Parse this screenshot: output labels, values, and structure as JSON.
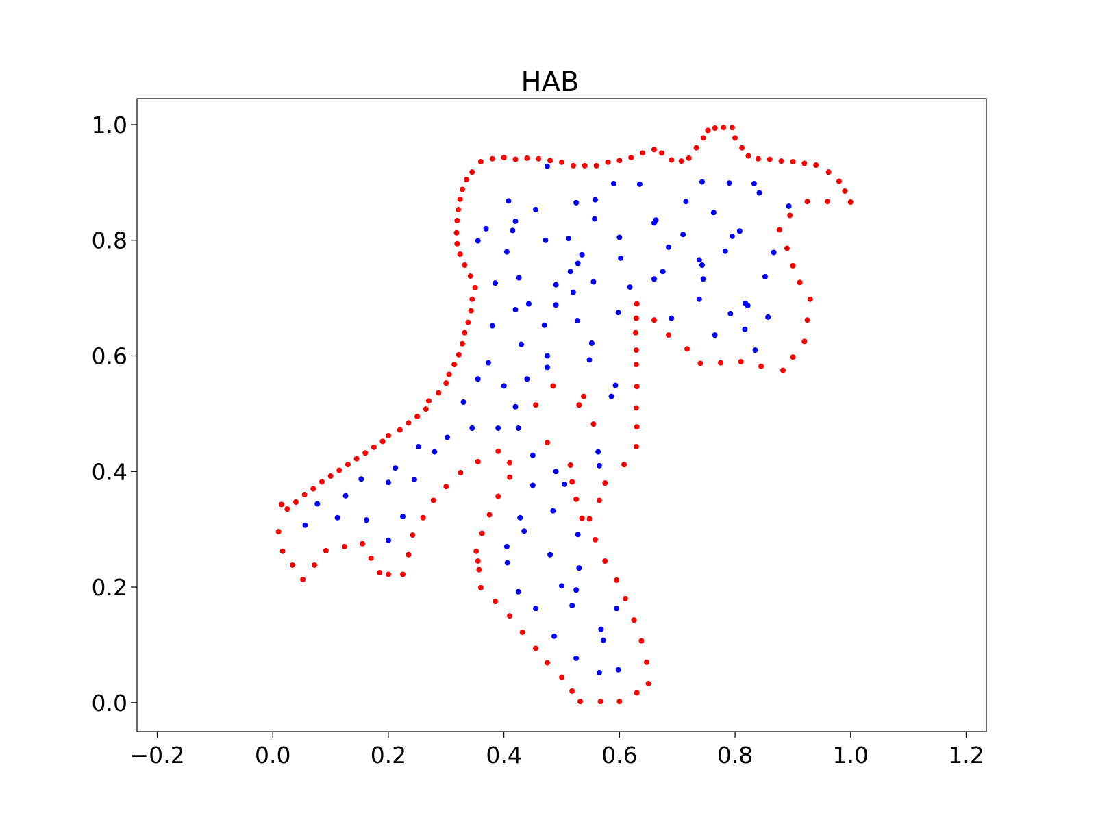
{
  "chart_data": {
    "type": "scatter",
    "title": "HAB",
    "xlabel": "",
    "ylabel": "",
    "xlim": [
      -0.235,
      1.235
    ],
    "ylim": [
      -0.05,
      1.045
    ],
    "xticks": [
      -0.2,
      0.0,
      0.2,
      0.4,
      0.6,
      0.8,
      1.0,
      1.2
    ],
    "xtick_labels": [
      "−0.2",
      "0.0",
      "0.2",
      "0.4",
      "0.6",
      "0.8",
      "1.0",
      "1.2"
    ],
    "yticks": [
      0.0,
      0.2,
      0.4,
      0.6,
      0.8,
      1.0
    ],
    "ytick_labels": [
      "0.0",
      "0.2",
      "0.4",
      "0.6",
      "0.8",
      "1.0"
    ],
    "grid": false,
    "series": [
      {
        "color": "#ff0000",
        "points": [
          [
            0.01,
            0.296
          ],
          [
            0.017,
            0.262
          ],
          [
            0.034,
            0.238
          ],
          [
            0.052,
            0.213
          ],
          [
            0.072,
            0.238
          ],
          [
            0.092,
            0.263
          ],
          [
            0.124,
            0.27
          ],
          [
            0.155,
            0.275
          ],
          [
            0.17,
            0.25
          ],
          [
            0.185,
            0.225
          ],
          [
            0.2,
            0.222
          ],
          [
            0.225,
            0.222
          ],
          [
            0.235,
            0.256
          ],
          [
            0.242,
            0.29
          ],
          [
            0.26,
            0.32
          ],
          [
            0.278,
            0.35
          ],
          [
            0.3,
            0.374
          ],
          [
            0.325,
            0.398
          ],
          [
            0.355,
            0.417
          ],
          [
            0.39,
            0.435
          ],
          [
            0.41,
            0.415
          ],
          [
            0.41,
            0.39
          ],
          [
            0.39,
            0.357
          ],
          [
            0.375,
            0.325
          ],
          [
            0.362,
            0.293
          ],
          [
            0.352,
            0.262
          ],
          [
            0.355,
            0.245
          ],
          [
            0.357,
            0.23
          ],
          [
            0.36,
            0.199
          ],
          [
            0.385,
            0.175
          ],
          [
            0.41,
            0.15
          ],
          [
            0.432,
            0.122
          ],
          [
            0.455,
            0.094
          ],
          [
            0.475,
            0.069
          ],
          [
            0.5,
            0.044
          ],
          [
            0.518,
            0.02
          ],
          [
            0.532,
            0.002
          ],
          [
            0.567,
            0.002
          ],
          [
            0.6,
            0.002
          ],
          [
            0.63,
            0.017
          ],
          [
            0.65,
            0.033
          ],
          [
            0.647,
            0.07
          ],
          [
            0.638,
            0.107
          ],
          [
            0.625,
            0.143
          ],
          [
            0.61,
            0.18
          ],
          [
            0.595,
            0.212
          ],
          [
            0.575,
            0.245
          ],
          [
            0.558,
            0.282
          ],
          [
            0.548,
            0.318
          ],
          [
            0.535,
            0.319
          ],
          [
            0.525,
            0.352
          ],
          [
            0.518,
            0.382
          ],
          [
            0.515,
            0.411
          ],
          [
            0.475,
            0.45
          ],
          [
            0.455,
            0.515
          ],
          [
            0.53,
            0.515
          ],
          [
            0.555,
            0.482
          ],
          [
            0.565,
            0.35
          ],
          [
            0.575,
            0.38
          ],
          [
            0.608,
            0.412
          ],
          [
            0.629,
            0.443
          ],
          [
            0.63,
            0.477
          ],
          [
            0.629,
            0.51
          ],
          [
            0.63,
            0.547
          ],
          [
            0.629,
            0.585
          ],
          [
            0.629,
            0.61
          ],
          [
            0.628,
            0.64
          ],
          [
            0.629,
            0.665
          ],
          [
            0.63,
            0.69
          ],
          [
            0.66,
            0.662
          ],
          [
            0.685,
            0.636
          ],
          [
            0.717,
            0.612
          ],
          [
            0.74,
            0.587
          ],
          [
            0.775,
            0.588
          ],
          [
            0.81,
            0.59
          ],
          [
            0.845,
            0.582
          ],
          [
            0.883,
            0.575
          ],
          [
            0.9,
            0.598
          ],
          [
            0.92,
            0.625
          ],
          [
            0.925,
            0.662
          ],
          [
            0.93,
            0.698
          ],
          [
            0.912,
            0.727
          ],
          [
            0.9,
            0.756
          ],
          [
            0.89,
            0.786
          ],
          [
            0.877,
            0.818
          ],
          [
            0.895,
            0.843
          ],
          [
            0.925,
            0.867
          ],
          [
            0.96,
            0.867
          ],
          [
            1.0,
            0.866
          ],
          [
            0.99,
            0.885
          ],
          [
            0.98,
            0.902
          ],
          [
            0.962,
            0.918
          ],
          [
            0.94,
            0.93
          ],
          [
            0.92,
            0.933
          ],
          [
            0.9,
            0.936
          ],
          [
            0.88,
            0.937
          ],
          [
            0.86,
            0.94
          ],
          [
            0.84,
            0.941
          ],
          [
            0.823,
            0.946
          ],
          [
            0.812,
            0.96
          ],
          [
            0.8,
            0.977
          ],
          [
            0.795,
            0.995
          ],
          [
            0.78,
            0.995
          ],
          [
            0.765,
            0.994
          ],
          [
            0.753,
            0.99
          ],
          [
            0.745,
            0.977
          ],
          [
            0.733,
            0.96
          ],
          [
            0.72,
            0.942
          ],
          [
            0.707,
            0.937
          ],
          [
            0.69,
            0.939
          ],
          [
            0.673,
            0.951
          ],
          [
            0.66,
            0.957
          ],
          [
            0.64,
            0.951
          ],
          [
            0.62,
            0.943
          ],
          [
            0.6,
            0.938
          ],
          [
            0.58,
            0.935
          ],
          [
            0.56,
            0.929
          ],
          [
            0.54,
            0.929
          ],
          [
            0.52,
            0.929
          ],
          [
            0.5,
            0.935
          ],
          [
            0.48,
            0.938
          ],
          [
            0.46,
            0.941
          ],
          [
            0.44,
            0.942
          ],
          [
            0.42,
            0.94
          ],
          [
            0.4,
            0.943
          ],
          [
            0.38,
            0.941
          ],
          [
            0.36,
            0.936
          ],
          [
            0.345,
            0.918
          ],
          [
            0.335,
            0.905
          ],
          [
            0.328,
            0.888
          ],
          [
            0.324,
            0.871
          ],
          [
            0.321,
            0.853
          ],
          [
            0.319,
            0.834
          ],
          [
            0.318,
            0.813
          ],
          [
            0.319,
            0.794
          ],
          [
            0.324,
            0.776
          ],
          [
            0.332,
            0.757
          ],
          [
            0.342,
            0.738
          ],
          [
            0.35,
            0.718
          ],
          [
            0.345,
            0.698
          ],
          [
            0.343,
            0.678
          ],
          [
            0.338,
            0.658
          ],
          [
            0.332,
            0.64
          ],
          [
            0.328,
            0.621
          ],
          [
            0.322,
            0.602
          ],
          [
            0.314,
            0.585
          ],
          [
            0.305,
            0.568
          ],
          [
            0.3,
            0.553
          ],
          [
            0.287,
            0.536
          ],
          [
            0.27,
            0.522
          ],
          [
            0.265,
            0.508
          ],
          [
            0.25,
            0.495
          ],
          [
            0.235,
            0.484
          ],
          [
            0.22,
            0.472
          ],
          [
            0.2,
            0.462
          ],
          [
            0.19,
            0.452
          ],
          [
            0.175,
            0.442
          ],
          [
            0.16,
            0.432
          ],
          [
            0.145,
            0.422
          ],
          [
            0.13,
            0.412
          ],
          [
            0.115,
            0.402
          ],
          [
            0.1,
            0.392
          ],
          [
            0.085,
            0.382
          ],
          [
            0.07,
            0.37
          ],
          [
            0.055,
            0.36
          ],
          [
            0.04,
            0.347
          ],
          [
            0.025,
            0.335
          ],
          [
            0.015,
            0.343
          ],
          [
            0.485,
            0.548
          ],
          [
            0.538,
            0.53
          ]
        ]
      },
      {
        "color": "#0000ff",
        "points": [
          [
            0.056,
            0.307
          ],
          [
            0.077,
            0.344
          ],
          [
            0.112,
            0.32
          ],
          [
            0.126,
            0.358
          ],
          [
            0.153,
            0.387
          ],
          [
            0.162,
            0.316
          ],
          [
            0.2,
            0.381
          ],
          [
            0.212,
            0.406
          ],
          [
            0.225,
            0.322
          ],
          [
            0.2,
            0.281
          ],
          [
            0.245,
            0.386
          ],
          [
            0.252,
            0.443
          ],
          [
            0.28,
            0.434
          ],
          [
            0.302,
            0.459
          ],
          [
            0.33,
            0.52
          ],
          [
            0.345,
            0.475
          ],
          [
            0.355,
            0.56
          ],
          [
            0.373,
            0.588
          ],
          [
            0.38,
            0.652
          ],
          [
            0.385,
            0.726
          ],
          [
            0.355,
            0.799
          ],
          [
            0.369,
            0.82
          ],
          [
            0.4,
            0.548
          ],
          [
            0.39,
            0.475
          ],
          [
            0.42,
            0.512
          ],
          [
            0.425,
            0.475
          ],
          [
            0.42,
            0.68
          ],
          [
            0.426,
            0.735
          ],
          [
            0.43,
            0.62
          ],
          [
            0.44,
            0.56
          ],
          [
            0.443,
            0.69
          ],
          [
            0.405,
            0.78
          ],
          [
            0.408,
            0.868
          ],
          [
            0.415,
            0.817
          ],
          [
            0.42,
            0.833
          ],
          [
            0.455,
            0.853
          ],
          [
            0.47,
            0.653
          ],
          [
            0.472,
            0.8
          ],
          [
            0.475,
            0.928
          ],
          [
            0.475,
            0.6
          ],
          [
            0.475,
            0.58
          ],
          [
            0.49,
            0.688
          ],
          [
            0.49,
            0.723
          ],
          [
            0.512,
            0.803
          ],
          [
            0.525,
            0.865
          ],
          [
            0.528,
            0.76
          ],
          [
            0.535,
            0.775
          ],
          [
            0.515,
            0.746
          ],
          [
            0.52,
            0.71
          ],
          [
            0.527,
            0.661
          ],
          [
            0.548,
            0.593
          ],
          [
            0.552,
            0.622
          ],
          [
            0.555,
            0.728
          ],
          [
            0.557,
            0.837
          ],
          [
            0.558,
            0.87
          ],
          [
            0.59,
            0.898
          ],
          [
            0.6,
            0.805
          ],
          [
            0.602,
            0.769
          ],
          [
            0.598,
            0.675
          ],
          [
            0.618,
            0.719
          ],
          [
            0.635,
            0.897
          ],
          [
            0.66,
            0.83
          ],
          [
            0.66,
            0.733
          ],
          [
            0.663,
            0.835
          ],
          [
            0.675,
            0.746
          ],
          [
            0.685,
            0.788
          ],
          [
            0.69,
            0.665
          ],
          [
            0.71,
            0.81
          ],
          [
            0.715,
            0.867
          ],
          [
            0.743,
            0.901
          ],
          [
            0.763,
            0.848
          ],
          [
            0.738,
            0.766
          ],
          [
            0.743,
            0.757
          ],
          [
            0.745,
            0.733
          ],
          [
            0.738,
            0.698
          ],
          [
            0.765,
            0.636
          ],
          [
            0.783,
            0.781
          ],
          [
            0.79,
            0.899
          ],
          [
            0.795,
            0.807
          ],
          [
            0.792,
            0.673
          ],
          [
            0.808,
            0.816
          ],
          [
            0.818,
            0.691
          ],
          [
            0.822,
            0.687
          ],
          [
            0.817,
            0.646
          ],
          [
            0.833,
            0.898
          ],
          [
            0.842,
            0.882
          ],
          [
            0.835,
            0.61
          ],
          [
            0.852,
            0.737
          ],
          [
            0.857,
            0.667
          ],
          [
            0.867,
            0.779
          ],
          [
            0.893,
            0.859
          ],
          [
            0.586,
            0.53
          ],
          [
            0.593,
            0.549
          ],
          [
            0.563,
            0.434
          ],
          [
            0.565,
            0.41
          ],
          [
            0.45,
            0.428
          ],
          [
            0.45,
            0.376
          ],
          [
            0.49,
            0.4
          ],
          [
            0.505,
            0.378
          ],
          [
            0.435,
            0.297
          ],
          [
            0.428,
            0.32
          ],
          [
            0.405,
            0.27
          ],
          [
            0.406,
            0.242
          ],
          [
            0.425,
            0.192
          ],
          [
            0.455,
            0.163
          ],
          [
            0.48,
            0.256
          ],
          [
            0.485,
            0.332
          ],
          [
            0.487,
            0.115
          ],
          [
            0.5,
            0.202
          ],
          [
            0.518,
            0.168
          ],
          [
            0.525,
            0.195
          ],
          [
            0.528,
            0.291
          ],
          [
            0.53,
            0.233
          ],
          [
            0.525,
            0.077
          ],
          [
            0.568,
            0.127
          ],
          [
            0.572,
            0.108
          ],
          [
            0.565,
            0.052
          ],
          [
            0.595,
            0.163
          ],
          [
            0.598,
            0.057
          ]
        ]
      }
    ]
  }
}
